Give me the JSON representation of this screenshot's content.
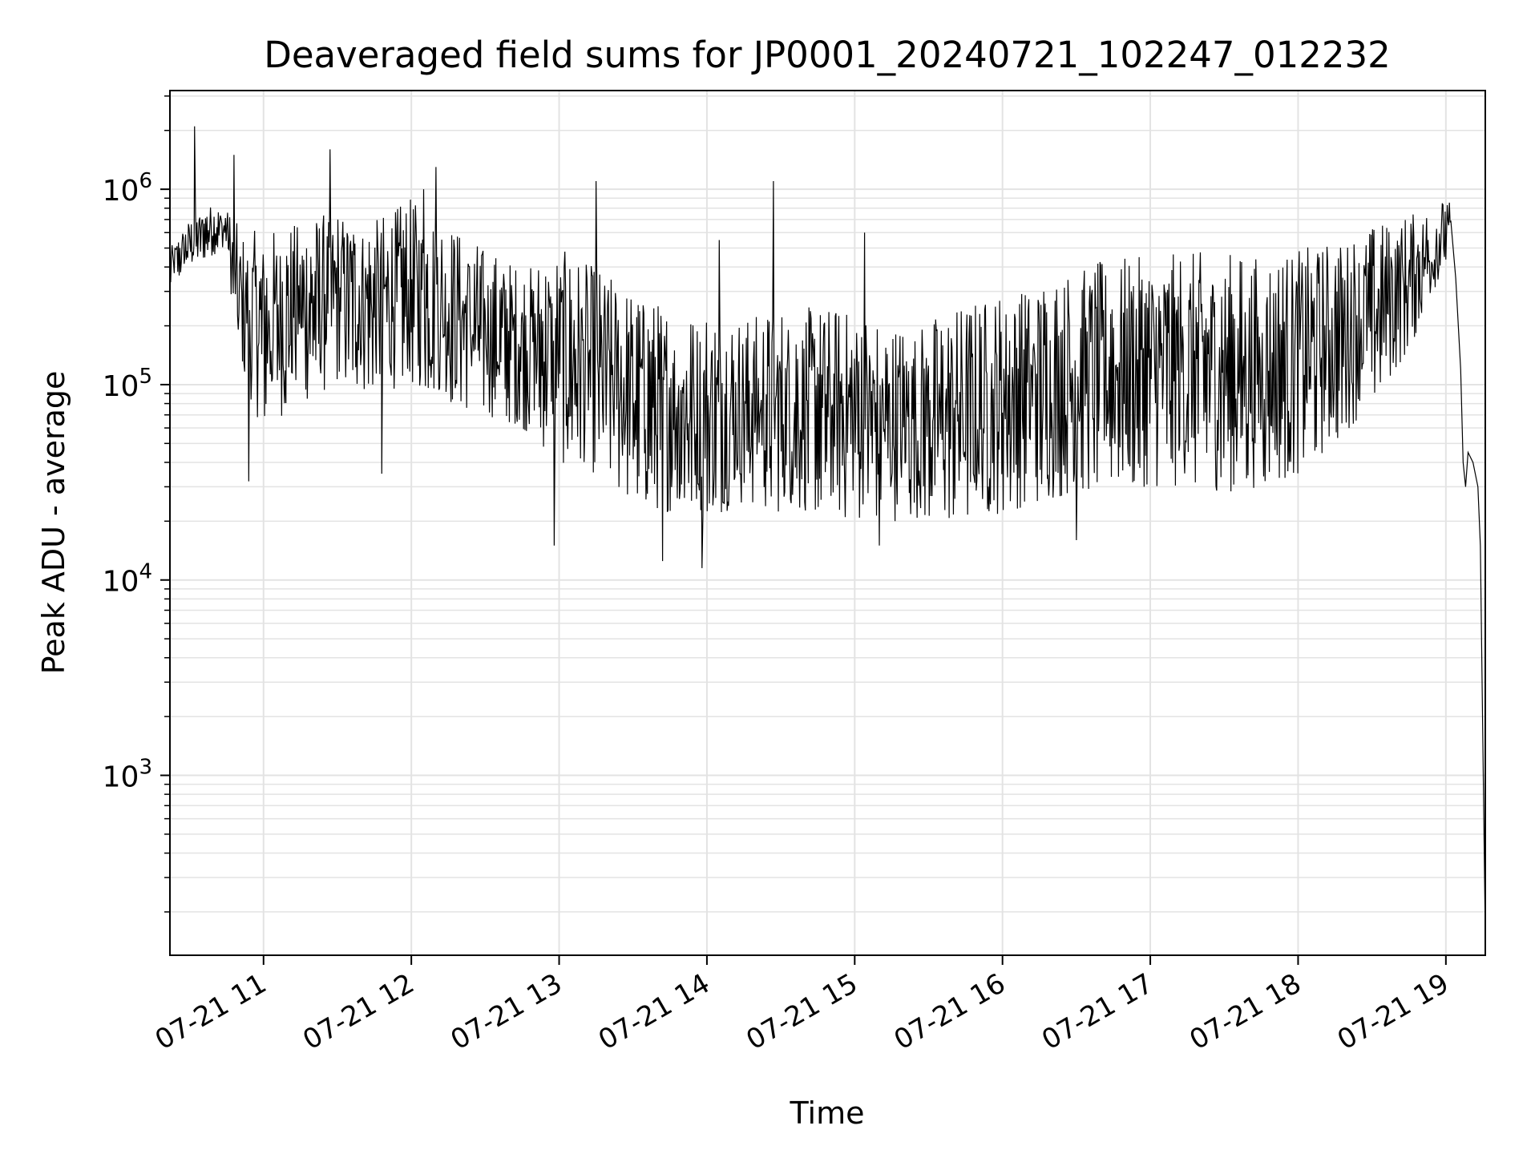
{
  "chart_data": {
    "type": "line",
    "title": "Deaveraged field sums for JP0001_20240721_102247_012232",
    "xlabel": "Time",
    "ylabel": "Peak ADU - average",
    "yscale": "log",
    "grid": true,
    "line_color": "#000000",
    "grid_color": "#e3e3e3",
    "x_range": [
      "07-21 10:22",
      "07-21 19:16"
    ],
    "ylim": [
      120,
      3200000
    ],
    "x_ticks": [
      {
        "value": "07-21 11:00",
        "label": "07-21 11"
      },
      {
        "value": "07-21 12:00",
        "label": "07-21 12"
      },
      {
        "value": "07-21 13:00",
        "label": "07-21 13"
      },
      {
        "value": "07-21 14:00",
        "label": "07-21 14"
      },
      {
        "value": "07-21 15:00",
        "label": "07-21 15"
      },
      {
        "value": "07-21 16:00",
        "label": "07-21 16"
      },
      {
        "value": "07-21 17:00",
        "label": "07-21 17"
      },
      {
        "value": "07-21 18:00",
        "label": "07-21 18"
      },
      {
        "value": "07-21 19:00",
        "label": "07-21 19"
      }
    ],
    "y_ticks": [
      {
        "value": 1000,
        "base": "10",
        "exp": "3"
      },
      {
        "value": 10000,
        "base": "10",
        "exp": "4"
      },
      {
        "value": 100000,
        "base": "10",
        "exp": "5"
      },
      {
        "value": 1000000,
        "base": "10",
        "exp": "6"
      }
    ],
    "series": [
      {
        "envelope": {
          "x": [
            "10:22",
            "10:30",
            "10:38",
            "10:45",
            "10:50",
            "11:00",
            "11:15",
            "11:30",
            "11:45",
            "12:00",
            "12:15",
            "12:30",
            "12:45",
            "13:00",
            "13:15",
            "13:30",
            "13:45",
            "14:00",
            "14:15",
            "14:30",
            "14:45",
            "15:00",
            "15:15",
            "15:30",
            "15:45",
            "16:00",
            "16:15",
            "16:30",
            "16:45",
            "17:00",
            "17:15",
            "17:30",
            "17:45",
            "18:00",
            "18:15",
            "18:30",
            "18:45",
            "19:00",
            "19:02"
          ],
          "low": [
            300000,
            400000,
            450000,
            500000,
            100000,
            60000,
            80000,
            100000,
            90000,
            100000,
            80000,
            70000,
            60000,
            40000,
            35000,
            25000,
            22000,
            20000,
            25000,
            22000,
            22000,
            20000,
            20000,
            20000,
            20000,
            22000,
            25000,
            28000,
            30000,
            30000,
            30000,
            28000,
            30000,
            35000,
            50000,
            80000,
            150000,
            400000,
            400000
          ],
          "high": [
            500000,
            700000,
            850000,
            800000,
            650000,
            600000,
            700000,
            800000,
            700000,
            900000,
            700000,
            500000,
            400000,
            500000,
            400000,
            300000,
            250000,
            250000,
            220000,
            250000,
            250000,
            250000,
            200000,
            220000,
            260000,
            300000,
            350000,
            400000,
            450000,
            450000,
            480000,
            480000,
            450000,
            500000,
            550000,
            650000,
            750000,
            900000,
            850000
          ]
        },
        "tail": {
          "x": [
            "19:02",
            "19:04",
            "19:06",
            "19:07",
            "19:08",
            "19:09",
            "19:11",
            "19:13",
            "19:14",
            "19:15",
            "19:16"
          ],
          "y": [
            700000,
            350000,
            120000,
            40000,
            30000,
            45000,
            40000,
            30000,
            15000,
            1500,
            150
          ]
        },
        "spikes": [
          {
            "x": "10:32",
            "y": 2100000
          },
          {
            "x": "10:48",
            "y": 1500000
          },
          {
            "x": "11:27",
            "y": 1600000
          },
          {
            "x": "12:05",
            "y": 1000000
          },
          {
            "x": "12:10",
            "y": 1300000
          },
          {
            "x": "13:15",
            "y": 1100000
          },
          {
            "x": "14:27",
            "y": 1100000
          },
          {
            "x": "14:05",
            "y": 550000
          },
          {
            "x": "15:04",
            "y": 600000
          },
          {
            "x": "13:42",
            "y": 12500
          },
          {
            "x": "13:58",
            "y": 11500
          },
          {
            "x": "12:58",
            "y": 15000
          },
          {
            "x": "10:54",
            "y": 32000
          },
          {
            "x": "11:48",
            "y": 35000
          },
          {
            "x": "15:10",
            "y": 15000
          },
          {
            "x": "16:30",
            "y": 16000
          }
        ]
      }
    ]
  }
}
